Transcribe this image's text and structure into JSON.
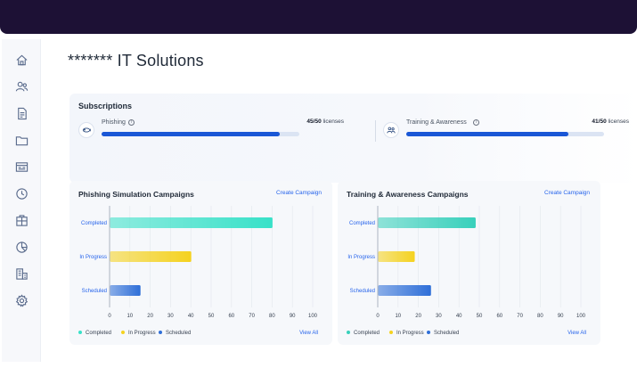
{
  "sidebar": {
    "items": [
      {
        "icon": "home-icon"
      },
      {
        "icon": "users-icon"
      },
      {
        "icon": "document-icon"
      },
      {
        "icon": "folder-icon"
      },
      {
        "icon": "email-template-icon"
      },
      {
        "icon": "clock-icon"
      },
      {
        "icon": "package-icon"
      },
      {
        "icon": "pie-chart-icon"
      },
      {
        "icon": "building-icon"
      },
      {
        "icon": "settings-icon"
      }
    ]
  },
  "page": {
    "title": "******* IT Solutions"
  },
  "subscriptions": {
    "title": "Subscriptions",
    "items": [
      {
        "name": "Phishing",
        "used": 45,
        "total": 50,
        "count_label": "45/50",
        "unit": "licenses",
        "fill_fraction": 0.9,
        "icon": "phishing-hook-icon"
      },
      {
        "name": "Training & Awareness",
        "used": 41,
        "total": 50,
        "count_label": "41/50",
        "unit": "licenses",
        "fill_fraction": 0.82,
        "icon": "training-icon"
      }
    ]
  },
  "campaigns": [
    {
      "title": "Phishing Simulation Campaigns",
      "create_label": "Create Campaign",
      "view_all_label": "View All",
      "chart_data": {
        "type": "bar",
        "orientation": "horizontal",
        "categories": [
          "Completed",
          "In Progress",
          "Scheduled"
        ],
        "values": [
          80,
          40,
          15
        ],
        "xlim": [
          0,
          100
        ],
        "xticks": [
          "0",
          "10",
          "20",
          "30",
          "40",
          "50",
          "60",
          "70",
          "80",
          "90",
          "100"
        ],
        "legend": [
          "Completed",
          "In Progress",
          "Scheduled"
        ],
        "colors": [
          "#38e1c8",
          "#f5d21f",
          "#2f6fd8"
        ]
      }
    },
    {
      "title": "Training & Awareness Campaigns",
      "create_label": "Create Campaign",
      "view_all_label": "View All",
      "chart_data": {
        "type": "bar",
        "orientation": "horizontal",
        "categories": [
          "Completed",
          "In Progress",
          "Scheduled"
        ],
        "values": [
          48,
          18,
          26
        ],
        "xlim": [
          0,
          100
        ],
        "xticks": [
          "0",
          "10",
          "20",
          "30",
          "40",
          "50",
          "60",
          "70",
          "80",
          "90",
          "100"
        ],
        "legend": [
          "Completed",
          "In Progress",
          "Scheduled"
        ],
        "colors": [
          "#38d0bb",
          "#f5d21f",
          "#2f6fd8"
        ]
      }
    }
  ],
  "theme": {
    "topbar": "#1d1135",
    "accent": "#1a57d6",
    "link": "#2563eb"
  }
}
